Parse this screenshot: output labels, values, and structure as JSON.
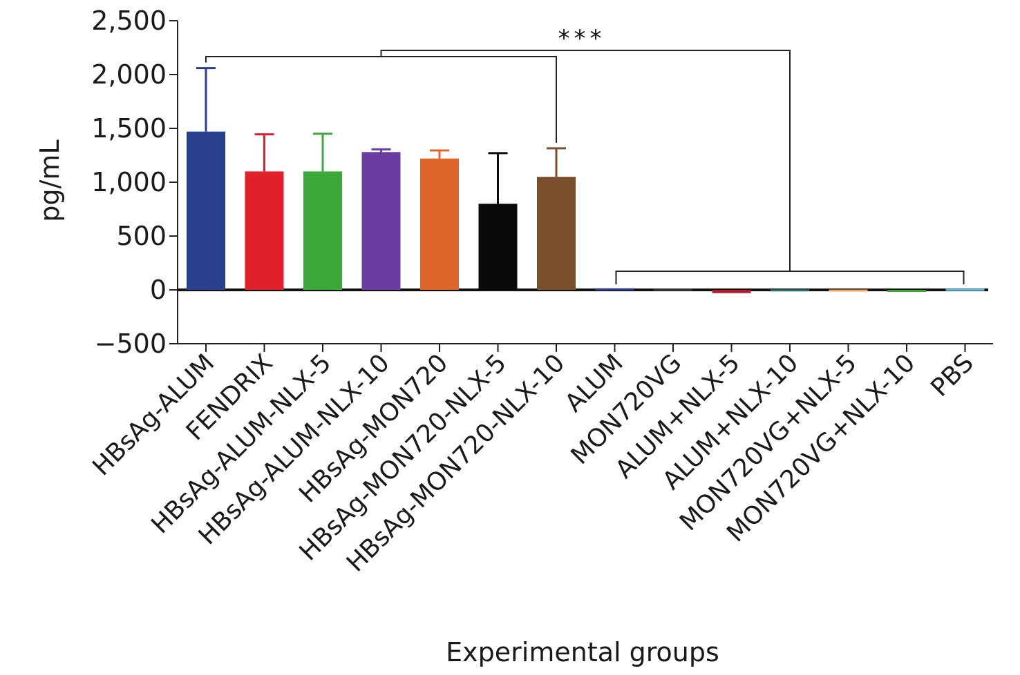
{
  "chart_data": {
    "type": "bar",
    "title": "",
    "xlabel": "Experimental groups",
    "ylabel": "pg/mL",
    "ylim": [
      -500,
      2500
    ],
    "yticks": [
      -500,
      0,
      500,
      1000,
      1500,
      2000,
      2500
    ],
    "ytick_labels": [
      "−500",
      "0",
      "500",
      "1,000",
      "1,500",
      "2,000",
      "2,500"
    ],
    "grid": false,
    "categories": [
      "HBsAg-ALUM",
      "FENDRIX",
      "HBsAg-ALUM-NLX-5",
      "HBsAg-ALUM-NLX-10",
      "HBsAg-MON720",
      "HBsAg-MON720-NLX-5",
      "HBsAg-MON720-NLX-10",
      "ALUM",
      "MON720VG",
      "ALUM+NLX-5",
      "ALUM+NLX-10",
      "MON720VG+NLX-5",
      "MON720VG+NLX-10",
      "PBS"
    ],
    "values": [
      1470,
      1100,
      1100,
      1280,
      1220,
      800,
      1050,
      15,
      10,
      -30,
      5,
      3,
      -15,
      10
    ],
    "error_upper": [
      590,
      345,
      350,
      25,
      75,
      470,
      265,
      8,
      6,
      10,
      6,
      4,
      6,
      8
    ],
    "colors": [
      "#2b3f8f",
      "#e0202b",
      "#3aa93a",
      "#6a3ea1",
      "#e0652a",
      "#0a0a0a",
      "#7a4f2c",
      "#2b3f8f",
      "#333333",
      "#b01e2d",
      "#2b6f70",
      "#f0a860",
      "#3aa93a",
      "#5fb8e0"
    ],
    "annotations": [
      {
        "text": "***",
        "type": "significance-bracket",
        "groups": [
          "HBsAg-ALUM",
          "HBsAg-MON720-NLX-10",
          "ALUM",
          "PBS"
        ]
      }
    ]
  }
}
